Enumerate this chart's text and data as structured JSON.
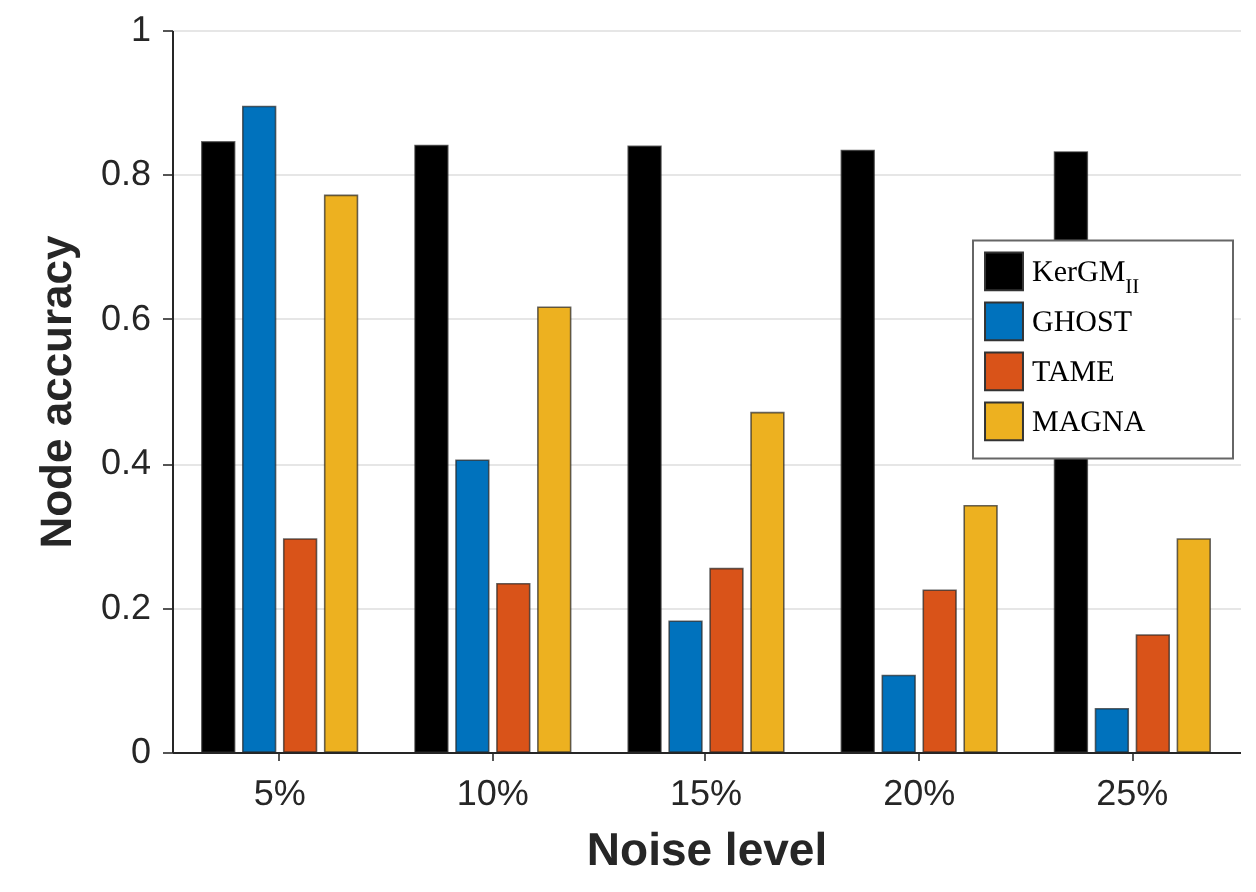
{
  "chart_data": {
    "type": "bar",
    "xlabel": "Noise level",
    "ylabel": "Node accuracy",
    "categories": [
      "5%",
      "10%",
      "15%",
      "20%",
      "25%"
    ],
    "series": [
      {
        "name": "KerGM$_{II}$",
        "color": "#000000",
        "values": [
          0.845,
          0.84,
          0.839,
          0.833,
          0.831
        ]
      },
      {
        "name": "GHOST",
        "color": "#0072bd",
        "values": [
          0.894,
          0.404,
          0.181,
          0.106,
          0.06
        ]
      },
      {
        "name": "TAME",
        "color": "#d95319",
        "values": [
          0.295,
          0.233,
          0.254,
          0.224,
          0.162
        ]
      },
      {
        "name": "MAGNA",
        "color": "#edb120",
        "values": [
          0.771,
          0.616,
          0.47,
          0.341,
          0.295
        ]
      }
    ],
    "ylim": [
      0,
      1
    ],
    "yticks": [
      0,
      0.2,
      0.4,
      0.6,
      0.8,
      1
    ],
    "grid": "y",
    "legend": "right"
  }
}
